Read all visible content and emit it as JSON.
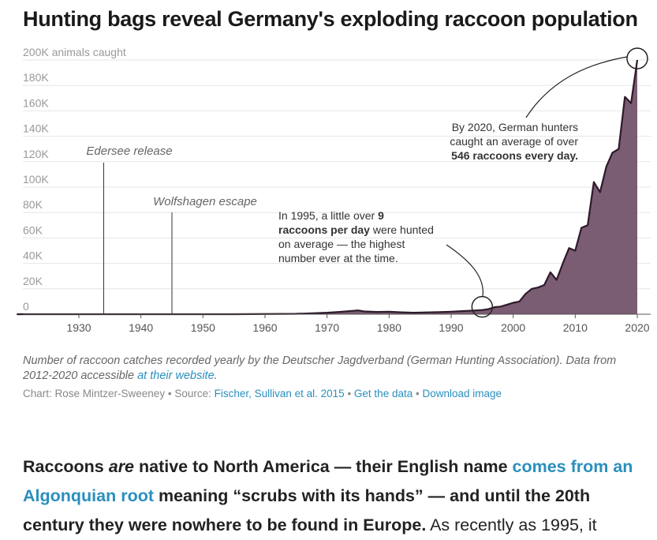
{
  "title": "Hunting bags reveal Germany's exploding raccoon population",
  "chart_data": {
    "type": "area",
    "title": "Hunting bags reveal Germany's exploding raccoon population",
    "ylabel": "animals caught",
    "ylim": [
      0,
      200000
    ],
    "xlim": [
      1920,
      2022
    ],
    "y_ticks": [
      {
        "value": 0,
        "label": "0"
      },
      {
        "value": 20000,
        "label": "20K"
      },
      {
        "value": 40000,
        "label": "40K"
      },
      {
        "value": 60000,
        "label": "60K"
      },
      {
        "value": 80000,
        "label": "80K"
      },
      {
        "value": 100000,
        "label": "100K"
      },
      {
        "value": 120000,
        "label": "120K"
      },
      {
        "value": 140000,
        "label": "140K"
      },
      {
        "value": 160000,
        "label": "160K"
      },
      {
        "value": 180000,
        "label": "180K"
      },
      {
        "value": 200000,
        "label": "200K animals caught"
      }
    ],
    "x_ticks": [
      1930,
      1940,
      1950,
      1960,
      1970,
      1980,
      1990,
      2000,
      2010,
      2020
    ],
    "color": "#7a5c73",
    "line_color": "#2e1a2a",
    "series": [
      {
        "name": "Raccoon catches",
        "x": [
          1920,
          1955,
          1965,
          1968,
          1970,
          1972,
          1974,
          1975,
          1976,
          1978,
          1980,
          1982,
          1984,
          1986,
          1988,
          1990,
          1992,
          1994,
          1995,
          1996,
          1997,
          1998,
          1999,
          2000,
          2001,
          2002,
          2003,
          2004,
          2005,
          2006,
          2007,
          2008,
          2009,
          2010,
          2011,
          2012,
          2013,
          2014,
          2015,
          2016,
          2017,
          2018,
          2019,
          2020
        ],
        "values": [
          0,
          0,
          300,
          800,
          1200,
          1800,
          2600,
          3000,
          2200,
          1800,
          2000,
          1500,
          1200,
          1400,
          1600,
          2000,
          2500,
          3000,
          3300,
          4000,
          5500,
          6000,
          7500,
          9000,
          10000,
          16000,
          20000,
          21000,
          23000,
          33000,
          27000,
          40000,
          52000,
          50000,
          68000,
          70000,
          104000,
          96000,
          116000,
          127000,
          130000,
          171000,
          166000,
          200000
        ]
      }
    ],
    "events": [
      {
        "year": 1934,
        "label": "Edersee release"
      },
      {
        "year": 1945,
        "label": "Wolfshagen escape"
      }
    ],
    "annotations": [
      {
        "year": 1995,
        "value": 3300,
        "lines": [
          [
            "In 1995, a little over ",
            "9"
          ],
          [
            "raccoons per day",
            " were hunted"
          ],
          [
            "on average — the highest",
            ""
          ],
          [
            "number ever at the time.",
            ""
          ]
        ]
      },
      {
        "year": 2020,
        "value": 200000,
        "lines": [
          [
            "By 2020, German hunters",
            ""
          ],
          [
            "caught an average of over",
            ""
          ],
          [
            "546 raccoons every day.",
            ""
          ]
        ]
      }
    ]
  },
  "caption": {
    "text": "Number of raccoon catches recorded yearly by the Deutscher Jagdverband (German Hunting Association). Data from 2012-2020 accessible ",
    "link": "at their website",
    "end": "."
  },
  "credits": {
    "chart_by": "Chart: Rose Mintzer-Sweeney",
    "sep": " • ",
    "source_label": "Source: ",
    "source_link": "Fischer, Sullivan et al. 2015",
    "get_data": "Get the data",
    "download": "Download image"
  },
  "body": {
    "p1": "Raccoons ",
    "p1_em": "are",
    "p1_b": " native to North America — their English name ",
    "link": "comes from an Algonquian root",
    "p2_b": " meaning “scrubs with its hands” — and until the 20th century they were nowhere to be found in Europe.",
    "p3": " As recently as 1995, it"
  }
}
